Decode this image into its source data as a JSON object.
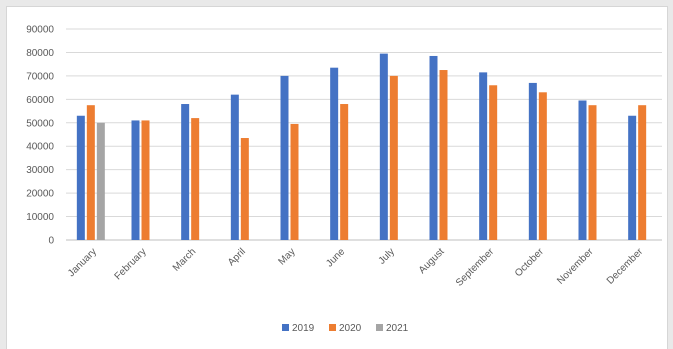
{
  "chart_data": {
    "type": "bar",
    "categories": [
      "January",
      "February",
      "March",
      "April",
      "May",
      "June",
      "July",
      "August",
      "September",
      "October",
      "November",
      "December"
    ],
    "series": [
      {
        "name": "2019",
        "color": "#4472c4",
        "values": [
          53000,
          51000,
          58000,
          62000,
          70000,
          73500,
          79500,
          78500,
          71500,
          67000,
          59500,
          53000
        ]
      },
      {
        "name": "2020",
        "color": "#ed7d31",
        "values": [
          57500,
          51000,
          52000,
          43500,
          49500,
          58000,
          70000,
          72500,
          66000,
          63000,
          57500,
          57500
        ]
      },
      {
        "name": "2021",
        "color": "#a5a5a5",
        "values": [
          50000,
          null,
          null,
          null,
          null,
          null,
          null,
          null,
          null,
          null,
          null,
          null
        ]
      }
    ],
    "yticks": [
      "0",
      "10000",
      "20000",
      "30000",
      "40000",
      "50000",
      "60000",
      "70000",
      "80000",
      "90000"
    ],
    "ylim": [
      0,
      90000
    ],
    "grid": true,
    "legend": "bottom",
    "title": "",
    "xlabel": "",
    "ylabel": ""
  }
}
